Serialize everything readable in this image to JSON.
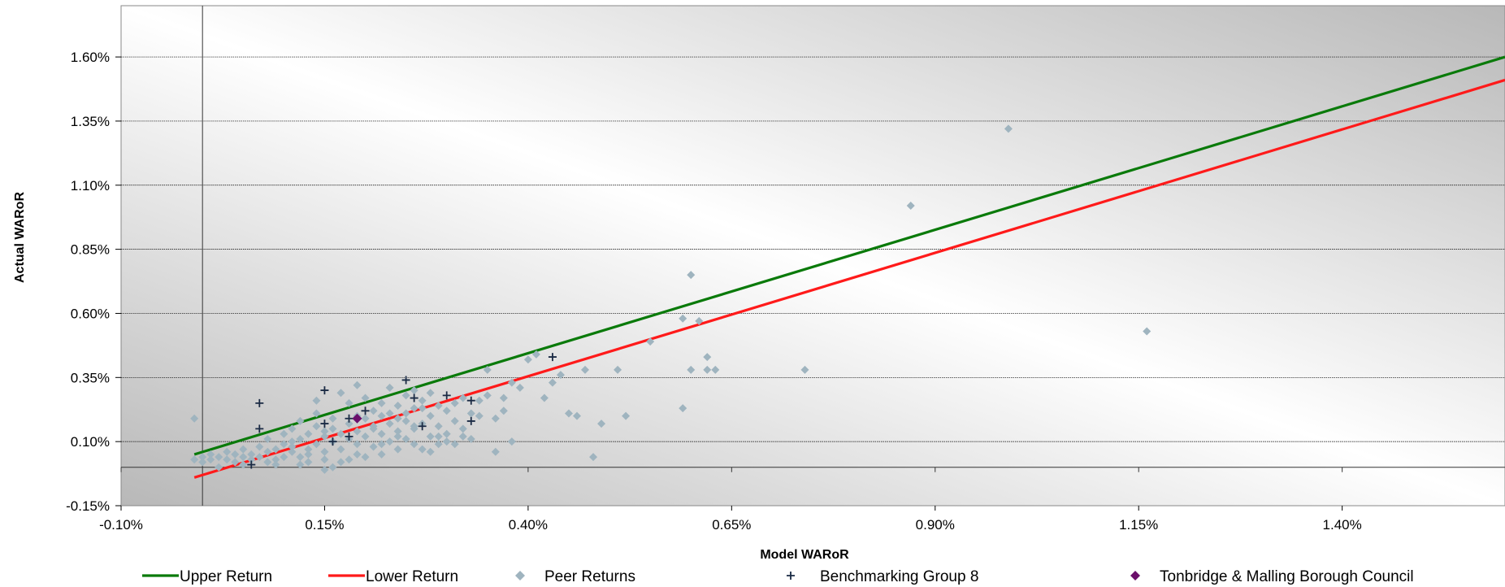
{
  "chart_data": {
    "type": "scatter",
    "xlabel": "Model WARoR",
    "ylabel": "Actual WARoR",
    "xlim": [
      -0.1,
      1.6
    ],
    "ylim": [
      -0.15,
      1.8
    ],
    "x_ticks": [
      -0.1,
      0.15,
      0.4,
      0.65,
      0.9,
      1.15,
      1.4
    ],
    "x_tick_labels": [
      "-0.10%",
      "0.15%",
      "0.40%",
      "0.65%",
      "0.90%",
      "1.15%",
      "1.40%"
    ],
    "y_ticks": [
      -0.15,
      0.1,
      0.35,
      0.6,
      0.85,
      1.1,
      1.35,
      1.6
    ],
    "y_tick_labels": [
      "-0.15%",
      "0.10%",
      "0.35%",
      "0.60%",
      "0.85%",
      "1.10%",
      "1.35%",
      "1.60%"
    ],
    "grid": true,
    "legend_position": "bottom",
    "colors": {
      "upper": "#0a7a0a",
      "lower": "#ff1a1a",
      "peer": "#9fb4bf",
      "bench": "#1a2a44",
      "council": "#6b0f6b"
    },
    "series": [
      {
        "name": "Upper Return",
        "kind": "line",
        "x": [
          -0.01,
          1.6
        ],
        "y": [
          0.05,
          1.6
        ]
      },
      {
        "name": "Lower Return",
        "kind": "line",
        "x": [
          -0.01,
          1.6
        ],
        "y": [
          -0.04,
          1.51
        ]
      },
      {
        "name": "Peer Returns",
        "kind": "scatter",
        "marker": "diamond",
        "points": [
          [
            -0.01,
            0.19
          ],
          [
            -0.01,
            0.03
          ],
          [
            0.0,
            0.04
          ],
          [
            0.0,
            0.02
          ],
          [
            0.01,
            0.05
          ],
          [
            0.01,
            0.03
          ],
          [
            0.02,
            0.04
          ],
          [
            0.03,
            0.06
          ],
          [
            0.03,
            0.03
          ],
          [
            0.04,
            0.05
          ],
          [
            0.04,
            0.02
          ],
          [
            0.05,
            0.04
          ],
          [
            0.05,
            0.07
          ],
          [
            0.06,
            0.03
          ],
          [
            0.06,
            0.05
          ],
          [
            0.07,
            0.08
          ],
          [
            0.07,
            0.04
          ],
          [
            0.08,
            0.02
          ],
          [
            0.08,
            0.06
          ],
          [
            0.08,
            0.11
          ],
          [
            0.09,
            0.03
          ],
          [
            0.09,
            0.07
          ],
          [
            0.1,
            0.09
          ],
          [
            0.1,
            0.04
          ],
          [
            0.1,
            0.13
          ],
          [
            0.11,
            0.06
          ],
          [
            0.11,
            0.15
          ],
          [
            0.11,
            0.08
          ],
          [
            0.12,
            0.04
          ],
          [
            0.12,
            0.11
          ],
          [
            0.12,
            0.18
          ],
          [
            0.13,
            0.07
          ],
          [
            0.13,
            0.13
          ],
          [
            0.13,
            0.02
          ],
          [
            0.14,
            0.09
          ],
          [
            0.14,
            0.16
          ],
          [
            0.14,
            0.21
          ],
          [
            0.15,
            0.06
          ],
          [
            0.15,
            0.12
          ],
          [
            0.15,
            0.03
          ],
          [
            0.16,
            0.1
          ],
          [
            0.16,
            0.15
          ],
          [
            0.16,
            0.19
          ],
          [
            0.17,
            0.07
          ],
          [
            0.17,
            0.13
          ],
          [
            0.17,
            0.02
          ],
          [
            0.18,
            0.11
          ],
          [
            0.18,
            0.17
          ],
          [
            0.18,
            0.25
          ],
          [
            0.19,
            0.05
          ],
          [
            0.19,
            0.09
          ],
          [
            0.19,
            0.14
          ],
          [
            0.2,
            0.12
          ],
          [
            0.2,
            0.19
          ],
          [
            0.2,
            0.27
          ],
          [
            0.21,
            0.08
          ],
          [
            0.21,
            0.16
          ],
          [
            0.21,
            0.22
          ],
          [
            0.22,
            0.13
          ],
          [
            0.22,
            0.2
          ],
          [
            0.22,
            0.25
          ],
          [
            0.23,
            0.1
          ],
          [
            0.23,
            0.17
          ],
          [
            0.23,
            0.21
          ],
          [
            0.24,
            0.14
          ],
          [
            0.24,
            0.19
          ],
          [
            0.24,
            0.24
          ],
          [
            0.25,
            0.11
          ],
          [
            0.25,
            0.18
          ],
          [
            0.25,
            0.21
          ],
          [
            0.26,
            0.15
          ],
          [
            0.26,
            0.23
          ],
          [
            0.26,
            0.3
          ],
          [
            0.27,
            0.07
          ],
          [
            0.27,
            0.17
          ],
          [
            0.27,
            0.26
          ],
          [
            0.28,
            0.12
          ],
          [
            0.28,
            0.2
          ],
          [
            0.28,
            0.29
          ],
          [
            0.29,
            0.09
          ],
          [
            0.29,
            0.16
          ],
          [
            0.29,
            0.24
          ],
          [
            0.3,
            0.13
          ],
          [
            0.3,
            0.22
          ],
          [
            0.31,
            0.18
          ],
          [
            0.31,
            0.25
          ],
          [
            0.32,
            0.15
          ],
          [
            0.33,
            0.21
          ],
          [
            0.33,
            0.11
          ],
          [
            0.34,
            0.26
          ],
          [
            0.34,
            0.2
          ],
          [
            0.35,
            0.38
          ],
          [
            0.35,
            0.28
          ],
          [
            0.36,
            0.06
          ],
          [
            0.37,
            0.22
          ],
          [
            0.37,
            0.27
          ],
          [
            0.38,
            0.1
          ],
          [
            0.38,
            0.33
          ],
          [
            0.39,
            0.31
          ],
          [
            0.4,
            0.42
          ],
          [
            0.41,
            0.44
          ],
          [
            0.42,
            0.27
          ],
          [
            0.43,
            0.33
          ],
          [
            0.44,
            0.36
          ],
          [
            0.45,
            0.21
          ],
          [
            0.46,
            0.2
          ],
          [
            0.47,
            0.38
          ],
          [
            0.48,
            0.04
          ],
          [
            0.49,
            0.17
          ],
          [
            0.51,
            0.38
          ],
          [
            0.52,
            0.2
          ],
          [
            0.55,
            0.49
          ],
          [
            0.59,
            0.58
          ],
          [
            0.59,
            0.23
          ],
          [
            0.6,
            0.75
          ],
          [
            0.61,
            0.57
          ],
          [
            0.62,
            0.38
          ],
          [
            0.6,
            0.38
          ],
          [
            0.62,
            0.43
          ],
          [
            0.63,
            0.38
          ],
          [
            0.74,
            0.38
          ],
          [
            0.87,
            1.02
          ],
          [
            0.99,
            1.32
          ],
          [
            1.16,
            0.53
          ],
          [
            0.02,
            0.0
          ],
          [
            0.05,
            0.01
          ],
          [
            0.09,
            0.01
          ],
          [
            0.12,
            0.01
          ],
          [
            0.15,
            -0.01
          ],
          [
            0.16,
            0.0
          ],
          [
            0.18,
            0.03
          ],
          [
            0.2,
            0.04
          ],
          [
            0.22,
            0.05
          ],
          [
            0.24,
            0.07
          ],
          [
            0.26,
            0.09
          ],
          [
            0.28,
            0.06
          ],
          [
            0.3,
            0.1
          ],
          [
            0.32,
            0.12
          ],
          [
            0.14,
            0.26
          ],
          [
            0.17,
            0.29
          ],
          [
            0.19,
            0.32
          ],
          [
            0.23,
            0.31
          ],
          [
            0.25,
            0.28
          ],
          [
            0.27,
            0.23
          ],
          [
            0.32,
            0.27
          ],
          [
            0.36,
            0.19
          ],
          [
            0.21,
            0.15
          ],
          [
            0.24,
            0.12
          ],
          [
            0.11,
            0.1
          ],
          [
            0.13,
            0.05
          ],
          [
            0.15,
            0.14
          ],
          [
            0.19,
            0.2
          ],
          [
            0.22,
            0.09
          ],
          [
            0.26,
            0.16
          ],
          [
            0.29,
            0.12
          ],
          [
            0.31,
            0.09
          ]
        ]
      },
      {
        "name": "Benchmarking Group 8",
        "kind": "scatter",
        "marker": "plus",
        "points": [
          [
            0.06,
            0.01
          ],
          [
            0.07,
            0.15
          ],
          [
            0.07,
            0.25
          ],
          [
            0.15,
            0.17
          ],
          [
            0.15,
            0.3
          ],
          [
            0.16,
            0.1
          ],
          [
            0.18,
            0.19
          ],
          [
            0.18,
            0.12
          ],
          [
            0.2,
            0.22
          ],
          [
            0.25,
            0.34
          ],
          [
            0.26,
            0.27
          ],
          [
            0.27,
            0.16
          ],
          [
            0.3,
            0.28
          ],
          [
            0.33,
            0.26
          ],
          [
            0.33,
            0.18
          ],
          [
            0.43,
            0.43
          ]
        ]
      },
      {
        "name": "Tonbridge & Malling Borough Council",
        "kind": "scatter",
        "marker": "diamond",
        "points": [
          [
            0.19,
            0.19
          ]
        ]
      }
    ]
  }
}
